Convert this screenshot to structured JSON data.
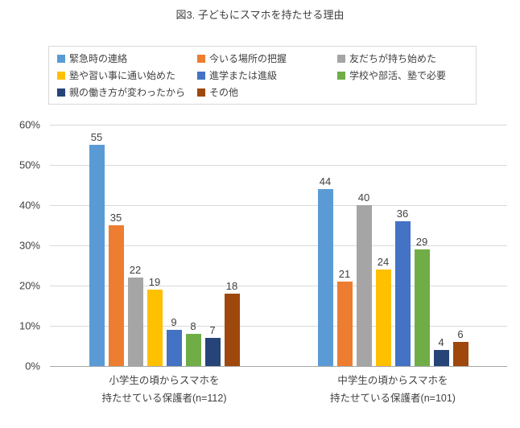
{
  "title": "図3. 子どもにスマホを持たせる理由",
  "chart_data": {
    "type": "bar",
    "categories": [
      [
        "小学生の頃からスマホを",
        "持たせている保護者(n=112)"
      ],
      [
        "中学生の頃からスマホを",
        "持たせている保護者(n=101)"
      ]
    ],
    "series": [
      {
        "name": "緊急時の連絡",
        "color": "#5B9BD5",
        "values": [
          55,
          44
        ]
      },
      {
        "name": "今いる場所の把握",
        "color": "#ED7D31",
        "values": [
          35,
          21
        ]
      },
      {
        "name": "友だちが持ち始めた",
        "color": "#A5A5A5",
        "values": [
          22,
          40
        ]
      },
      {
        "name": "塾や習い事に通い始めた",
        "color": "#FFC000",
        "values": [
          19,
          24
        ]
      },
      {
        "name": "進学または進級",
        "color": "#4472C4",
        "values": [
          9,
          36
        ]
      },
      {
        "name": "学校や部活、塾で必要",
        "color": "#70AD47",
        "values": [
          8,
          29
        ]
      },
      {
        "name": "親の働き方が変わったから",
        "color": "#264478",
        "values": [
          7,
          4
        ]
      },
      {
        "name": "その他",
        "color": "#9E480E",
        "values": [
          18,
          6
        ]
      }
    ],
    "xlabel": "",
    "ylabel": "",
    "ylim": [
      0,
      60
    ],
    "y_ticks": [
      "60%",
      "50%",
      "40%",
      "30%",
      "20%",
      "10%",
      "0%"
    ],
    "grid": true,
    "legend_position": "top",
    "data_labels": true
  },
  "colors": {
    "grid": "#d9d9d9",
    "axis": "#a6a6a6",
    "text": "#404040"
  }
}
